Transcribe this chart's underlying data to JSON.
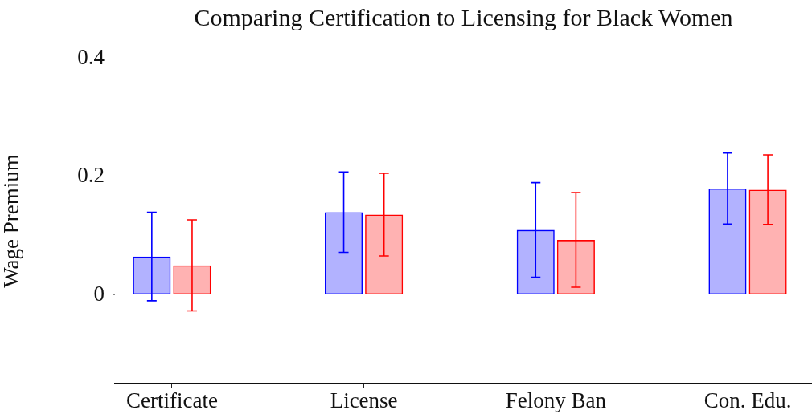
{
  "chart_data": {
    "type": "bar",
    "title": "Comparing Certification to Licensing for Black Women",
    "ylabel": "Wage Premium",
    "categories": [
      "Certificate",
      "License",
      "Felony Ban",
      "Con. Edu."
    ],
    "series": [
      {
        "color": "#0000ff",
        "values": [
          0.065,
          0.14,
          0.11,
          0.18
        ],
        "errors": [
          0.075,
          0.068,
          0.08,
          0.06
        ]
      },
      {
        "color": "#ff0000",
        "values": [
          0.05,
          0.136,
          0.093,
          0.178
        ],
        "errors": [
          0.077,
          0.07,
          0.08,
          0.059
        ]
      }
    ],
    "ylim": [
      -0.15,
      0.4
    ],
    "yticks": [
      0,
      0.2,
      0.4
    ],
    "grid": false,
    "legend": false
  }
}
